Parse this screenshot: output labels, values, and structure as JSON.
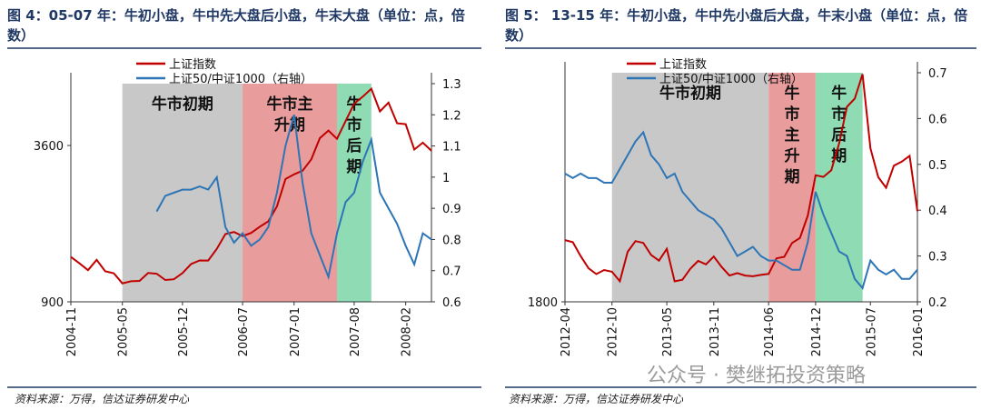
{
  "chart_data": [
    {
      "type": "line",
      "title": "图 4：05-07 年：牛初小盘，牛中先大盘后小盘，牛末大盘（单位：点，倍数）",
      "source": "资料来源：万得，信达证券研发中心",
      "x": [
        "2004-11",
        "2004-12",
        "2005-01",
        "2005-02",
        "2005-03",
        "2005-04",
        "2005-05",
        "2005-06",
        "2005-07",
        "2005-08",
        "2005-09",
        "2005-10",
        "2005-11",
        "2005-12",
        "2006-01",
        "2006-02",
        "2006-03",
        "2006-04",
        "2006-05",
        "2006-06",
        "2006-07",
        "2006-08",
        "2006-09",
        "2006-10",
        "2006-11",
        "2006-12",
        "2007-01",
        "2007-02",
        "2007-03",
        "2007-04",
        "2007-05",
        "2007-06",
        "2007-07",
        "2007-08",
        "2007-09",
        "2007-10",
        "2007-11",
        "2007-12",
        "2008-01",
        "2008-02",
        "2008-03",
        "2008-04",
        "2008-05"
      ],
      "xlim": [
        "2004-11",
        "2008-05"
      ],
      "xticks": [
        "2004-11",
        "2005-05",
        "2005-12",
        "2006-07",
        "2007-01",
        "2007-08",
        "2008-02"
      ],
      "ylim": [
        900,
        6230
      ],
      "log_scale": true,
      "yticks": [
        900,
        3600
      ],
      "y2lim": [
        0.6,
        1.3
      ],
      "y2ticks": [
        0.6,
        0.7,
        0.8,
        0.9,
        1,
        1.1,
        1.2,
        1.3
      ],
      "series": [
        {
          "name": "上证指数",
          "color": "#c00000",
          "values": [
            1340,
            1266,
            1191,
            1306,
            1181,
            1159,
            1060,
            1080,
            1083,
            1162,
            1155,
            1092,
            1099,
            1161,
            1258,
            1299,
            1298,
            1440,
            1641,
            1672,
            1612,
            1658,
            1752,
            1837,
            2099,
            2675,
            2786,
            2881,
            3183,
            3841,
            4109,
            3820,
            4471,
            5218,
            5552,
            5954,
            4871,
            5262,
            4383,
            4348,
            3473,
            3693,
            3433
          ]
        },
        {
          "name": "上证50/中证1000（右轴）",
          "color": "#2e75b6",
          "axis": "y2",
          "values": [
            null,
            null,
            null,
            null,
            null,
            null,
            null,
            null,
            null,
            null,
            0.89,
            0.94,
            0.95,
            0.96,
            0.96,
            0.97,
            0.96,
            1.0,
            0.84,
            0.79,
            0.82,
            0.78,
            0.8,
            0.84,
            0.95,
            1.1,
            1.2,
            0.98,
            0.82,
            0.75,
            0.68,
            0.82,
            0.92,
            0.95,
            1.05,
            1.12,
            0.95,
            0.9,
            0.85,
            0.78,
            0.72,
            0.82,
            0.8
          ]
        }
      ],
      "regions": [
        {
          "label": "牛市初期",
          "start": "2005-05",
          "end": "2006-07",
          "color": "#c8c8c8"
        },
        {
          "label": "牛市主升期",
          "start": "2006-07",
          "end": "2007-06",
          "color": "#e89c9c"
        },
        {
          "label": "牛市后期",
          "start": "2007-06",
          "end": "2007-10",
          "color": "#8fdcb4"
        }
      ]
    },
    {
      "type": "line",
      "title": "图 5： 13-15 年：牛初小盘，牛中先小盘后大盘，牛末小盘（单位：点，倍数）",
      "source": "资料来源：万得，信达证券研发中心",
      "x": [
        "2012-04",
        "2012-05",
        "2012-06",
        "2012-07",
        "2012-08",
        "2012-09",
        "2012-10",
        "2012-11",
        "2012-12",
        "2013-01",
        "2013-02",
        "2013-03",
        "2013-04",
        "2013-05",
        "2013-06",
        "2013-07",
        "2013-08",
        "2013-09",
        "2013-10",
        "2013-11",
        "2013-12",
        "2014-01",
        "2014-02",
        "2014-03",
        "2014-04",
        "2014-05",
        "2014-06",
        "2014-07",
        "2014-08",
        "2014-09",
        "2014-10",
        "2014-11",
        "2014-12",
        "2015-01",
        "2015-02",
        "2015-03",
        "2015-04",
        "2015-05",
        "2015-06",
        "2015-07",
        "2015-08",
        "2015-09",
        "2015-10",
        "2015-11",
        "2015-12",
        "2016-01"
      ],
      "xlim": [
        "2012-04",
        "2016-01"
      ],
      "xticks": [
        "2012-04",
        "2012-10",
        "2013-05",
        "2013-11",
        "2014-06",
        "2014-12",
        "2015-07",
        "2016-01"
      ],
      "ylim": [
        1800,
        5200
      ],
      "log_scale": true,
      "yticks": [
        1800
      ],
      "y2lim": [
        0.2,
        0.7
      ],
      "y2ticks": [
        0.2,
        0.3,
        0.4,
        0.5,
        0.6,
        0.7
      ],
      "series": [
        {
          "name": "上证指数",
          "color": "#c00000",
          "values": [
            2396,
            2373,
            2225,
            2103,
            2047,
            2086,
            2069,
            1980,
            2269,
            2385,
            2365,
            2237,
            2178,
            2301,
            1979,
            1994,
            2098,
            2175,
            2141,
            2220,
            2116,
            2033,
            2056,
            2033,
            2026,
            2039,
            2048,
            2201,
            2217,
            2364,
            2420,
            2683,
            3234,
            3210,
            3310,
            3748,
            4441,
            4612,
            5166,
            3664,
            3206,
            3053,
            3382,
            3445,
            3539,
            2738
          ]
        },
        {
          "name": "上证50/中证1000（右轴）",
          "color": "#2e75b6",
          "axis": "y2",
          "values": [
            0.48,
            0.47,
            0.48,
            0.47,
            0.47,
            0.46,
            0.46,
            0.49,
            0.52,
            0.55,
            0.57,
            0.52,
            0.5,
            0.47,
            0.48,
            0.44,
            0.42,
            0.4,
            0.39,
            0.38,
            0.36,
            0.33,
            0.3,
            0.31,
            0.32,
            0.3,
            0.29,
            0.29,
            0.28,
            0.27,
            0.27,
            0.33,
            0.44,
            0.39,
            0.35,
            0.31,
            0.3,
            0.25,
            0.23,
            0.29,
            0.27,
            0.26,
            0.27,
            0.25,
            0.25,
            0.27
          ]
        }
      ],
      "regions": [
        {
          "label": "牛市初期",
          "start": "2012-10",
          "end": "2014-06",
          "color": "#c8c8c8"
        },
        {
          "label": "牛市主升期",
          "start": "2014-06",
          "end": "2014-12",
          "color": "#e89c9c"
        },
        {
          "label": "牛市后期",
          "start": "2014-12",
          "end": "2015-06",
          "color": "#8fdcb4"
        }
      ]
    }
  ],
  "watermark": "公众号 · 樊继拓投资策略"
}
